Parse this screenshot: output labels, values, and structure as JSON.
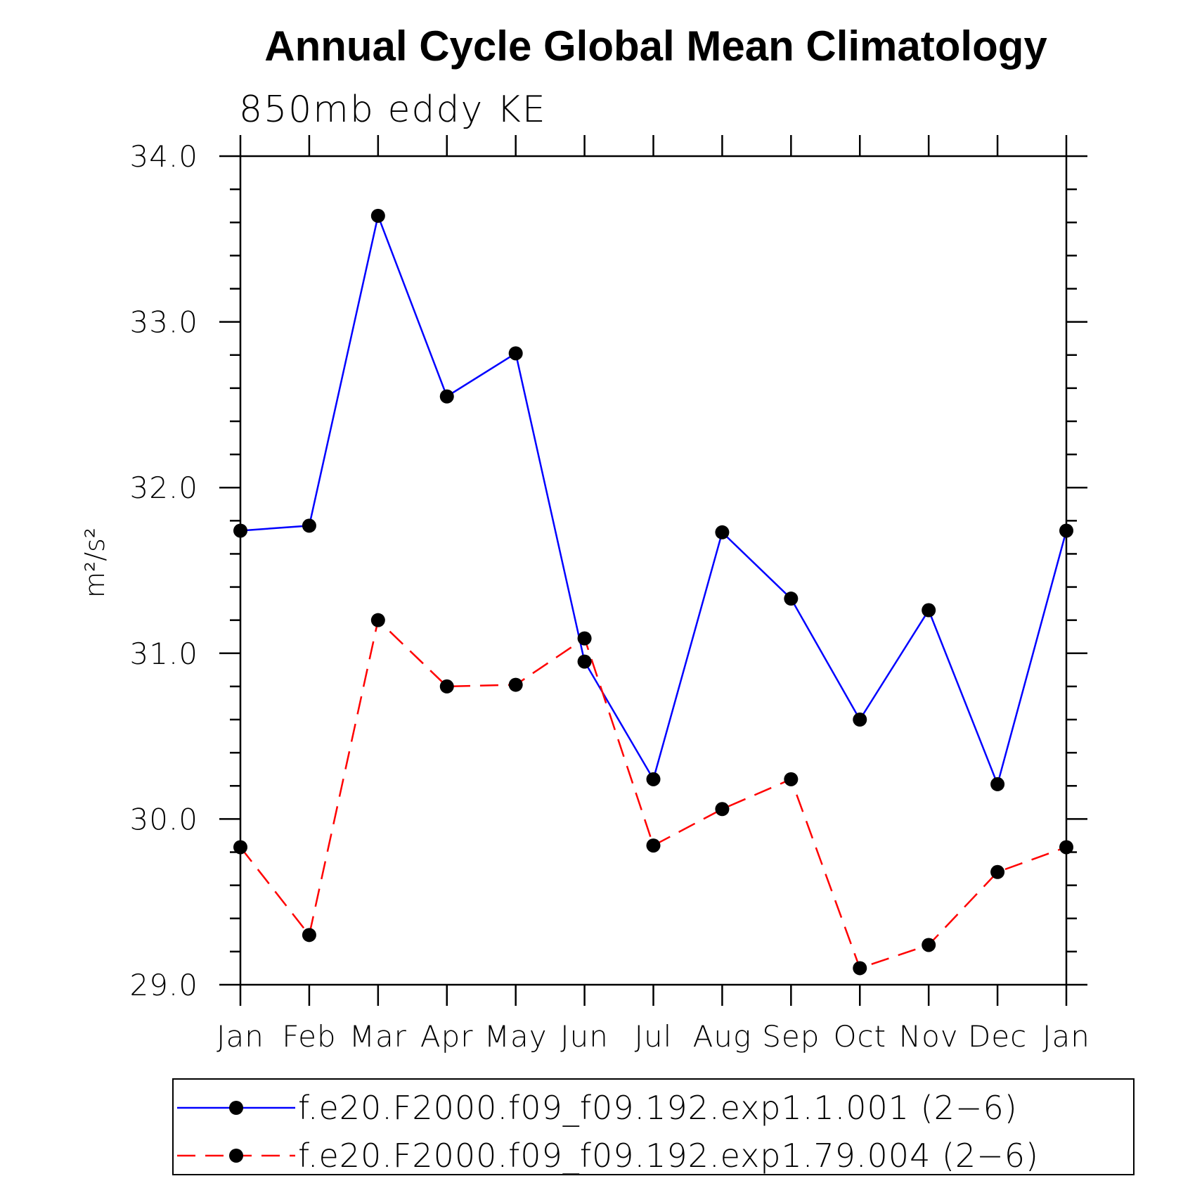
{
  "chart_data": {
    "type": "line",
    "title": "Annual Cycle Global Mean Climatology",
    "subtitle": "850mb eddy KE",
    "ylabel": "m²/s²",
    "xlabel": "",
    "categories": [
      "Jan",
      "Feb",
      "Mar",
      "Apr",
      "May",
      "Jun",
      "Jul",
      "Aug",
      "Sep",
      "Oct",
      "Nov",
      "Dec",
      "Jan"
    ],
    "ylim": [
      29.0,
      34.0
    ],
    "yticks": [
      "29.0",
      "30.0",
      "31.0",
      "32.0",
      "33.0",
      "34.0"
    ],
    "series": [
      {
        "name": "f.e20.F2000.f09_f09.192.exp1.1.001 (2−6)",
        "color": "#0000ff",
        "dash": "solid",
        "marker": "filled-circle",
        "values": [
          31.74,
          31.77,
          33.64,
          32.55,
          32.81,
          30.95,
          30.24,
          31.73,
          31.33,
          30.6,
          31.26,
          30.21,
          31.74
        ]
      },
      {
        "name": "f.e20.F2000.f09_f09.192.exp1.79.004 (2−6)",
        "color": "#ff0000",
        "dash": "dashed",
        "marker": "filled-circle",
        "values": [
          29.83,
          29.3,
          31.2,
          30.8,
          30.81,
          31.09,
          29.84,
          30.06,
          30.24,
          29.1,
          29.24,
          29.68,
          29.83
        ]
      }
    ],
    "legend_position": "bottom",
    "grid": false
  }
}
